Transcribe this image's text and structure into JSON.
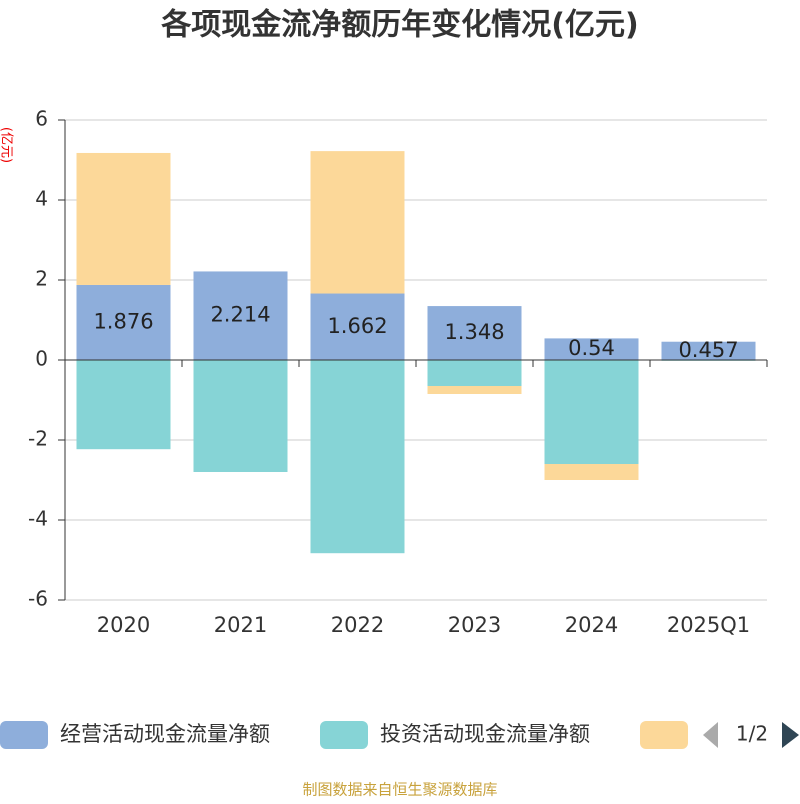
{
  "chart_data": {
    "type": "stacked-bar",
    "title": "各项现金流净额历年变化情况(亿元)",
    "y_label": "(亿元)",
    "categories": [
      "2020",
      "2021",
      "2022",
      "2023",
      "2024",
      "2025Q1"
    ],
    "series": [
      {
        "name": "经营活动现金流量净额",
        "color": "#8eaedb",
        "values": [
          1.876,
          2.214,
          1.662,
          1.348,
          0.54,
          0.457
        ],
        "labels": true
      },
      {
        "name": "投资活动现金流量净额",
        "color": "#86d4d6",
        "values": [
          -2.23,
          -2.8,
          -4.83,
          -0.65,
          -2.6,
          -0.02
        ],
        "labels": false
      },
      {
        "color": "#fcd899",
        "values": [
          3.3,
          0,
          3.56,
          -0.2,
          -0.4,
          0
        ],
        "labels": false
      }
    ],
    "ylim": [
      -6,
      6
    ],
    "yticks": [
      -6,
      -4,
      -2,
      0,
      2,
      4,
      6
    ],
    "grid": true,
    "legend_page": "1/2",
    "source": "制图数据来自恒生聚源数据库"
  }
}
